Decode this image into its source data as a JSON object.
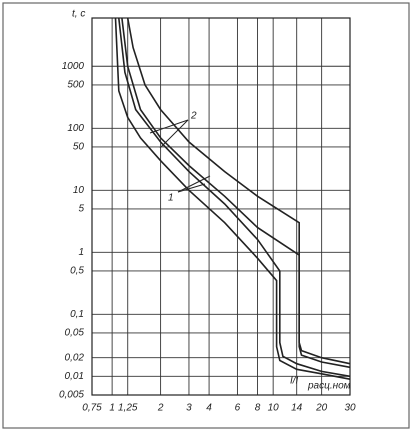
{
  "chart_data": {
    "type": "line",
    "ylabel": "t, c",
    "xlabel": "I/I",
    "xlabel_sub": "расц.ном",
    "annotations": [
      "1",
      "2"
    ],
    "xscale": "log",
    "yscale": "log",
    "grid": true,
    "xlim": [
      0.75,
      30
    ],
    "xticks": [
      {
        "value": 0.75,
        "label": "0,75"
      },
      1,
      {
        "value": 1.25,
        "label": "1,25"
      },
      2,
      3,
      4,
      6,
      8,
      10,
      14,
      20,
      30
    ],
    "ylim": [
      0.005,
      6000
    ],
    "yticks": [
      {
        "value": 0.005,
        "label": "0,005"
      },
      {
        "value": 0.01,
        "label": "0,01"
      },
      {
        "value": 0.02,
        "label": "0,02"
      },
      {
        "value": 0.05,
        "label": "0,05"
      },
      {
        "value": 0.1,
        "label": "0,1"
      },
      {
        "value": 0.5,
        "label": "0,5"
      },
      1,
      5,
      10,
      50,
      100,
      500,
      1000
    ],
    "series": [
      {
        "color": "#222222",
        "x": [
          1.05,
          1.1,
          1.25,
          1.5,
          2,
          3,
          5,
          8,
          10.5,
          10.5,
          11,
          14,
          20,
          30
        ],
        "values": [
          6000,
          400,
          150,
          70,
          30,
          10,
          3,
          0.8,
          0.35,
          0.03,
          0.018,
          0.013,
          0.011,
          0.009
        ]
      },
      {
        "color": "#222222",
        "x": [
          1.1,
          1.2,
          1.4,
          2,
          3,
          5,
          8,
          11,
          11,
          11.5,
          14,
          20,
          30
        ],
        "values": [
          6000,
          800,
          200,
          60,
          20,
          6,
          1.6,
          0.5,
          0.035,
          0.021,
          0.016,
          0.012,
          0.01
        ]
      },
      {
        "color": "#222222",
        "x": [
          1.15,
          1.25,
          1.5,
          2,
          3,
          5,
          8,
          14.5,
          14.5,
          15,
          20,
          30
        ],
        "values": [
          6000,
          1000,
          200,
          70,
          25,
          8,
          2.5,
          0.9,
          0.03,
          0.022,
          0.017,
          0.014
        ]
      },
      {
        "color": "#222222",
        "x": [
          1.25,
          1.35,
          1.6,
          2,
          3,
          5,
          8,
          14.5,
          14.5,
          15,
          20,
          30
        ],
        "values": [
          6000,
          2000,
          500,
          200,
          60,
          20,
          8,
          3,
          0.035,
          0.026,
          0.02,
          0.016
        ]
      }
    ]
  }
}
